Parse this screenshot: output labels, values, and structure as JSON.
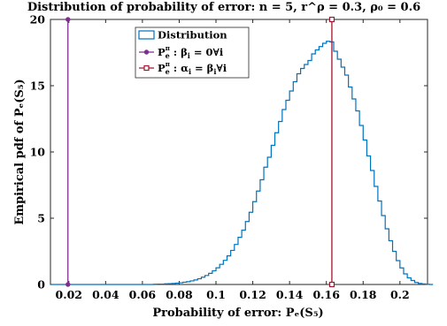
{
  "chart_data": {
    "type": "line",
    "title": "Distribution of probability of error: n = 5, r^ρ = 0.3, ρ₀ = 0.6",
    "xlabel": "Probability of error: Pₑ(S₅)",
    "ylabel": "Empirical pdf of Pₑ(S₅)",
    "xlim": [
      0.01,
      0.215
    ],
    "ylim": [
      0,
      20
    ],
    "xticks": [
      0.02,
      0.04,
      0.06,
      0.08,
      0.1,
      0.12,
      0.14,
      0.16,
      0.18,
      0.2
    ],
    "xtick_labels": [
      "0.02",
      "0.04",
      "0.06",
      "0.08",
      "0.1",
      "0.12",
      "0.14",
      "0.16",
      "0.18",
      "0.2"
    ],
    "yticks": [
      0,
      5,
      10,
      15,
      20
    ],
    "ytick_labels": [
      "0",
      "5",
      "10",
      "15",
      "20"
    ],
    "grid": false,
    "legend_position": "top-center",
    "colors": {
      "distribution": "#0072BD",
      "beta_zero": "#7E2F8E",
      "alpha_eq_beta": "#A2142F",
      "axes": "#262626"
    },
    "series": [
      {
        "name": "Distribution",
        "style": "stairs",
        "bin_width": 0.002,
        "bin_start": 0.066,
        "values": [
          0.02,
          0.03,
          0.03,
          0.05,
          0.06,
          0.08,
          0.1,
          0.13,
          0.17,
          0.21,
          0.27,
          0.34,
          0.43,
          0.55,
          0.68,
          0.84,
          1.03,
          1.26,
          1.52,
          1.82,
          2.16,
          2.57,
          3.02,
          3.56,
          4.1,
          4.75,
          5.45,
          6.25,
          7.05,
          7.9,
          8.85,
          9.6,
          10.5,
          11.45,
          12.3,
          13.2,
          13.9,
          14.6,
          15.3,
          15.9,
          16.3,
          16.6,
          16.9,
          17.4,
          17.7,
          17.95,
          18.2,
          18.35,
          18.3,
          17.6,
          17.0,
          16.4,
          15.8,
          14.9,
          14.0,
          13.1,
          12.0,
          10.9,
          9.7,
          8.6,
          7.4,
          6.3,
          5.2,
          4.2,
          3.3,
          2.5,
          1.8,
          1.25,
          0.8,
          0.5,
          0.3,
          0.15,
          0.08,
          0.04,
          0.02,
          0
        ]
      },
      {
        "name": "P_e^{π_t^c} : β_i = 0 ∀i",
        "legend_main": "P",
        "legend_sub": "e",
        "legend_sup": "π",
        "legend_text": ": β",
        "legend_text_sub": "i",
        "legend_text_rest": " = 0∀i",
        "style": "stem",
        "marker": "circle",
        "x": 0.0195,
        "y": 20
      },
      {
        "name": "P_e^{π_u^c} : α_i = β_i ∀i",
        "legend_main": "P",
        "legend_sub": "e",
        "legend_sup": "π",
        "legend_text": ": α",
        "legend_text_sub": "i",
        "legend_text_mid": " = β",
        "legend_text_sub2": "i",
        "legend_text_rest": "∀i",
        "style": "stem",
        "marker": "square",
        "x": 0.163,
        "y": 20
      }
    ]
  }
}
